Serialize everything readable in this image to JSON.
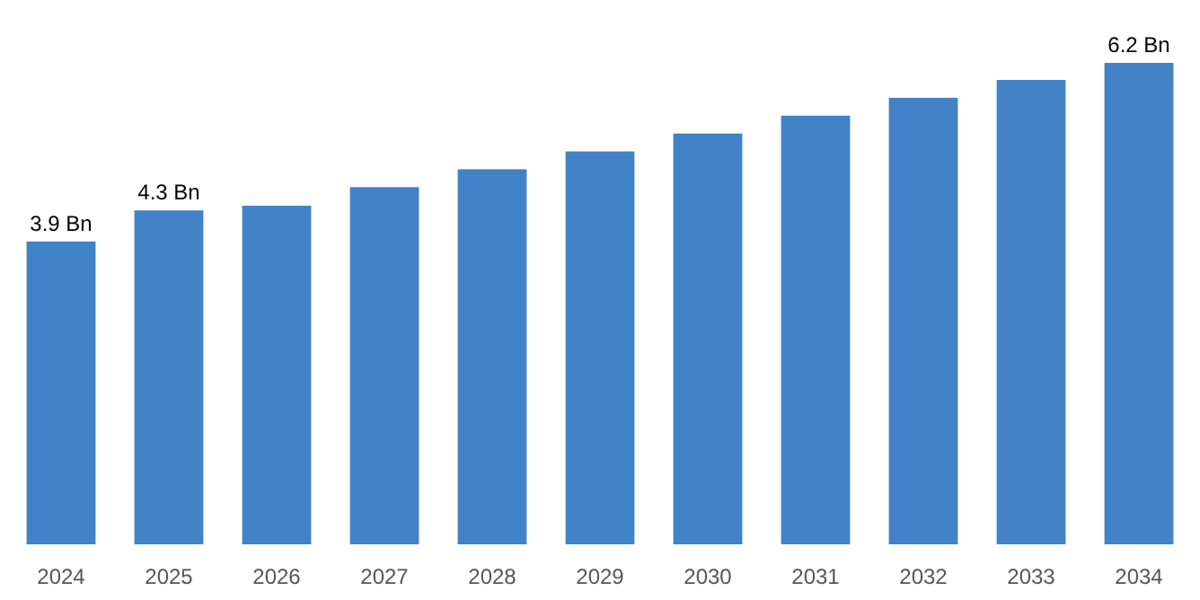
{
  "chart_data": {
    "type": "bar",
    "categories": [
      "2024",
      "2025",
      "2026",
      "2027",
      "2028",
      "2029",
      "2030",
      "2031",
      "2032",
      "2033",
      "2034"
    ],
    "values": [
      3.9,
      4.3,
      4.36,
      4.6,
      4.83,
      5.06,
      5.29,
      5.52,
      5.75,
      5.98,
      6.2
    ],
    "value_labels": [
      "3.9 Bn",
      "4.3 Bn",
      null,
      null,
      null,
      null,
      null,
      null,
      null,
      null,
      "6.2 Bn"
    ],
    "color": "#4282c6"
  }
}
